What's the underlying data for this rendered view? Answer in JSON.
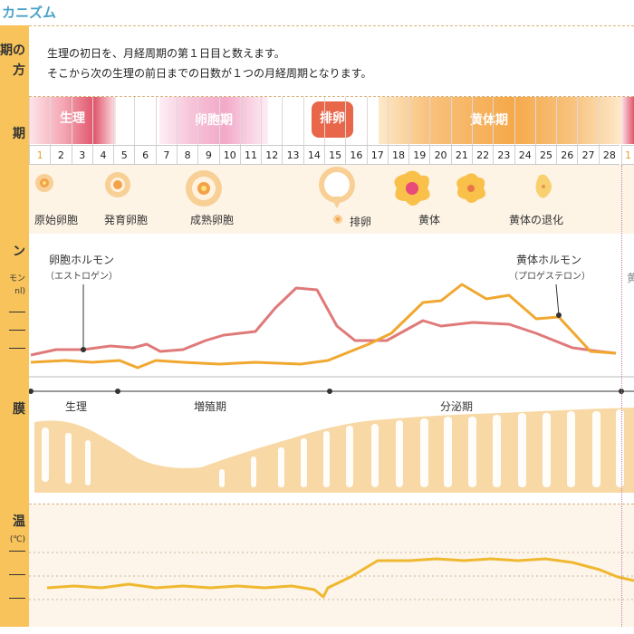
{
  "title": "カニズム",
  "left_labels": {
    "cycle_1": "期の",
    "cycle_2": "方",
    "phase": "期",
    "hormone": "ン",
    "hormone_sub1": "モン",
    "hormone_sub2": "nl)",
    "endometrium": "膜",
    "temp_1": "温",
    "temp_2": "(℃)"
  },
  "intro": {
    "line1": "生理の初日を、月経周期の第１日目と数えます。",
    "line2": "そこから次の生理の前日までの日数が１つの月経周期となります。"
  },
  "phases": {
    "menstruation": "生理",
    "follicular": "卵胞期",
    "ovulation": "排卵",
    "luteal": "黄体期"
  },
  "days": [
    "1",
    "2",
    "3",
    "4",
    "5",
    "6",
    "7",
    "8",
    "9",
    "10",
    "11",
    "12",
    "13",
    "14",
    "15",
    "16",
    "17",
    "18",
    "19",
    "20",
    "21",
    "22",
    "23",
    "24",
    "25",
    "26",
    "27",
    "28"
  ],
  "next_day": "1",
  "ovary_labels": {
    "primordial": "原始卵胞",
    "developing": "発育卵胞",
    "mature": "成熟卵胞",
    "ovulation": "排卵",
    "corpus_luteum": "黄体",
    "regression": "黄体の退化"
  },
  "hormones": {
    "estrogen": "卵胞ホルモン",
    "estrogen_sub": "（エストロゲン）",
    "progesterone": "黄体ホルモン",
    "progesterone_sub": "（プロゲステロン）",
    "edge_char": "黄"
  },
  "endometrium_labels": {
    "menstruation": "生理",
    "proliferative": "増殖期",
    "secretory": "分泌期"
  },
  "colors": {
    "menstruation": "#e0566b",
    "follicular": "#f2a9c8",
    "ovulation": "#e8664a",
    "luteal": "#f5a94a",
    "estrogen_line": "#e07a7a",
    "progesterone_line": "#f0a830",
    "temp_line": "#f0b830",
    "endometrium": "#f8d9a6"
  }
}
